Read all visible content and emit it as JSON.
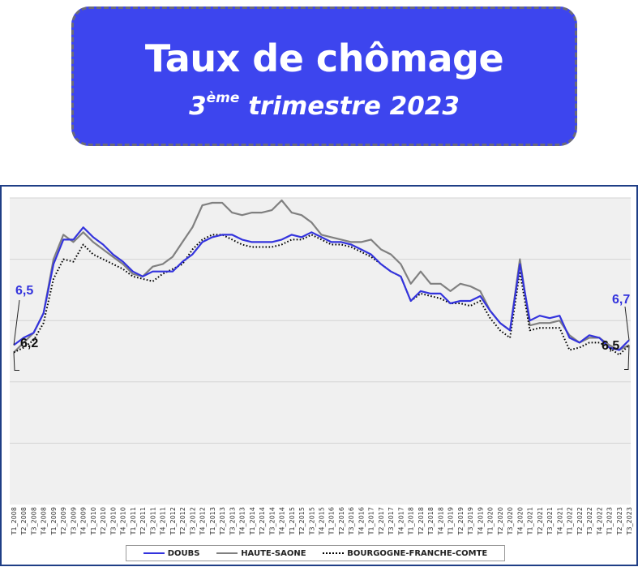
{
  "header": {
    "title": "Taux de chômage",
    "subtitle_prefix": "3",
    "subtitle_sup": "ème",
    "subtitle_rest": " trimestre 2023"
  },
  "colors": {
    "doubs": "#3333dd",
    "haute_saone": "#808080",
    "bfc": "#000000",
    "plot_bg": "#f0f0f0",
    "frame": "#1f3e86",
    "title_bg": "#3d45ee"
  },
  "chart_data": {
    "type": "line",
    "title": "",
    "xlabel": "",
    "ylabel": "",
    "ylim": [
      0,
      12.5
    ],
    "grid": true,
    "legend_position": "bottom",
    "categories": [
      "T1_2008",
      "T2_2008",
      "T3_2008",
      "T4_2008",
      "T1_2009",
      "T2_2009",
      "T3_2009",
      "T4_2009",
      "T1_2010",
      "T2_2010",
      "T3_2010",
      "T4_2010",
      "T1_2011",
      "T2_2011",
      "T3_2011",
      "T4_2011",
      "T1_2012",
      "T2_2012",
      "T3_2012",
      "T4_2012",
      "T1_2013",
      "T2_2013",
      "T3_2013",
      "T4_2013",
      "T1_2014",
      "T2_2014",
      "T3_2014",
      "T4_2014",
      "T1_2015",
      "T2_2015",
      "T3_2015",
      "T4_2015",
      "T1_2016",
      "T2_2016",
      "T3_2016",
      "T4_2016",
      "T1_2017",
      "T2_2017",
      "T3_2017",
      "T4_2017",
      "T1_2018",
      "T2_2018",
      "T3_2018",
      "T4_2018",
      "T1_2019",
      "T2_2019",
      "T3_2019",
      "T4_2019",
      "T1_2020",
      "T2_2020",
      "T3_2020",
      "T4_2020",
      "T1_2021",
      "T2_2021",
      "T3_2021",
      "T4_2021",
      "T1_2022",
      "T2_2022",
      "T3_2022",
      "T4_2022",
      "T1_2023",
      "T2_2023",
      "T3_2023"
    ],
    "series": [
      {
        "name": "DOUBS",
        "key": "doubs",
        "values": [
          6.5,
          6.8,
          7.0,
          7.8,
          9.8,
          10.8,
          10.8,
          11.3,
          10.9,
          10.6,
          10.2,
          9.9,
          9.5,
          9.3,
          9.5,
          9.5,
          9.5,
          9.9,
          10.2,
          10.7,
          10.9,
          11.0,
          11.0,
          10.8,
          10.7,
          10.7,
          10.7,
          10.8,
          11.0,
          10.9,
          11.1,
          10.9,
          10.7,
          10.7,
          10.6,
          10.4,
          10.2,
          9.8,
          9.5,
          9.3,
          8.3,
          8.7,
          8.6,
          8.6,
          8.2,
          8.3,
          8.3,
          8.5,
          7.9,
          7.4,
          7.1,
          9.8,
          7.5,
          7.7,
          7.6,
          7.7,
          6.8,
          6.6,
          6.9,
          6.8,
          6.4,
          6.3,
          6.7
        ]
      },
      {
        "name": "HAUTE-SAONE",
        "key": "haute_saone",
        "values": [
          6.2,
          6.6,
          7.0,
          7.8,
          10.0,
          11.0,
          10.7,
          11.1,
          10.7,
          10.4,
          10.1,
          9.8,
          9.4,
          9.3,
          9.7,
          9.8,
          10.1,
          10.7,
          11.3,
          12.2,
          12.3,
          12.3,
          11.9,
          11.8,
          11.9,
          11.9,
          12.0,
          12.4,
          11.9,
          11.8,
          11.5,
          11.0,
          10.9,
          10.8,
          10.7,
          10.7,
          10.8,
          10.4,
          10.2,
          9.8,
          9.0,
          9.5,
          9.0,
          9.0,
          8.7,
          9.0,
          8.9,
          8.7,
          7.9,
          7.4,
          7.1,
          10.0,
          7.3,
          7.4,
          7.4,
          7.5,
          6.9,
          6.6,
          6.8,
          6.8,
          6.5,
          6.3,
          6.5
        ]
      },
      {
        "name": "BOURGOGNE-FRANCHE-COMTE",
        "key": "bfc",
        "values": [
          6.2,
          6.4,
          6.7,
          7.4,
          9.2,
          10.0,
          9.9,
          10.6,
          10.2,
          10.0,
          9.8,
          9.6,
          9.3,
          9.2,
          9.1,
          9.4,
          9.6,
          9.8,
          10.4,
          10.8,
          11.0,
          11.0,
          10.8,
          10.6,
          10.5,
          10.5,
          10.5,
          10.6,
          10.8,
          10.8,
          11.0,
          10.8,
          10.6,
          10.6,
          10.5,
          10.3,
          10.1,
          9.8,
          9.5,
          9.3,
          8.3,
          8.6,
          8.5,
          8.4,
          8.2,
          8.2,
          8.1,
          8.3,
          7.6,
          7.1,
          6.8,
          9.5,
          7.1,
          7.2,
          7.2,
          7.2,
          6.3,
          6.4,
          6.6,
          6.6,
          6.4,
          6.1,
          6.5
        ]
      }
    ],
    "annotations": {
      "doubs_first": "6,5",
      "doubs_last": "6,7",
      "haute_saone_first": "6,2",
      "haute_saone_last": "6,5"
    }
  },
  "legend": {
    "items": [
      {
        "label": "DOUBS",
        "key": "doubs",
        "style": "solid"
      },
      {
        "label": "HAUTE-SAONE",
        "key": "haute_saone",
        "style": "solid"
      },
      {
        "label": "BOURGOGNE-FRANCHE-COMTE",
        "key": "bfc",
        "style": "dotted"
      }
    ]
  }
}
